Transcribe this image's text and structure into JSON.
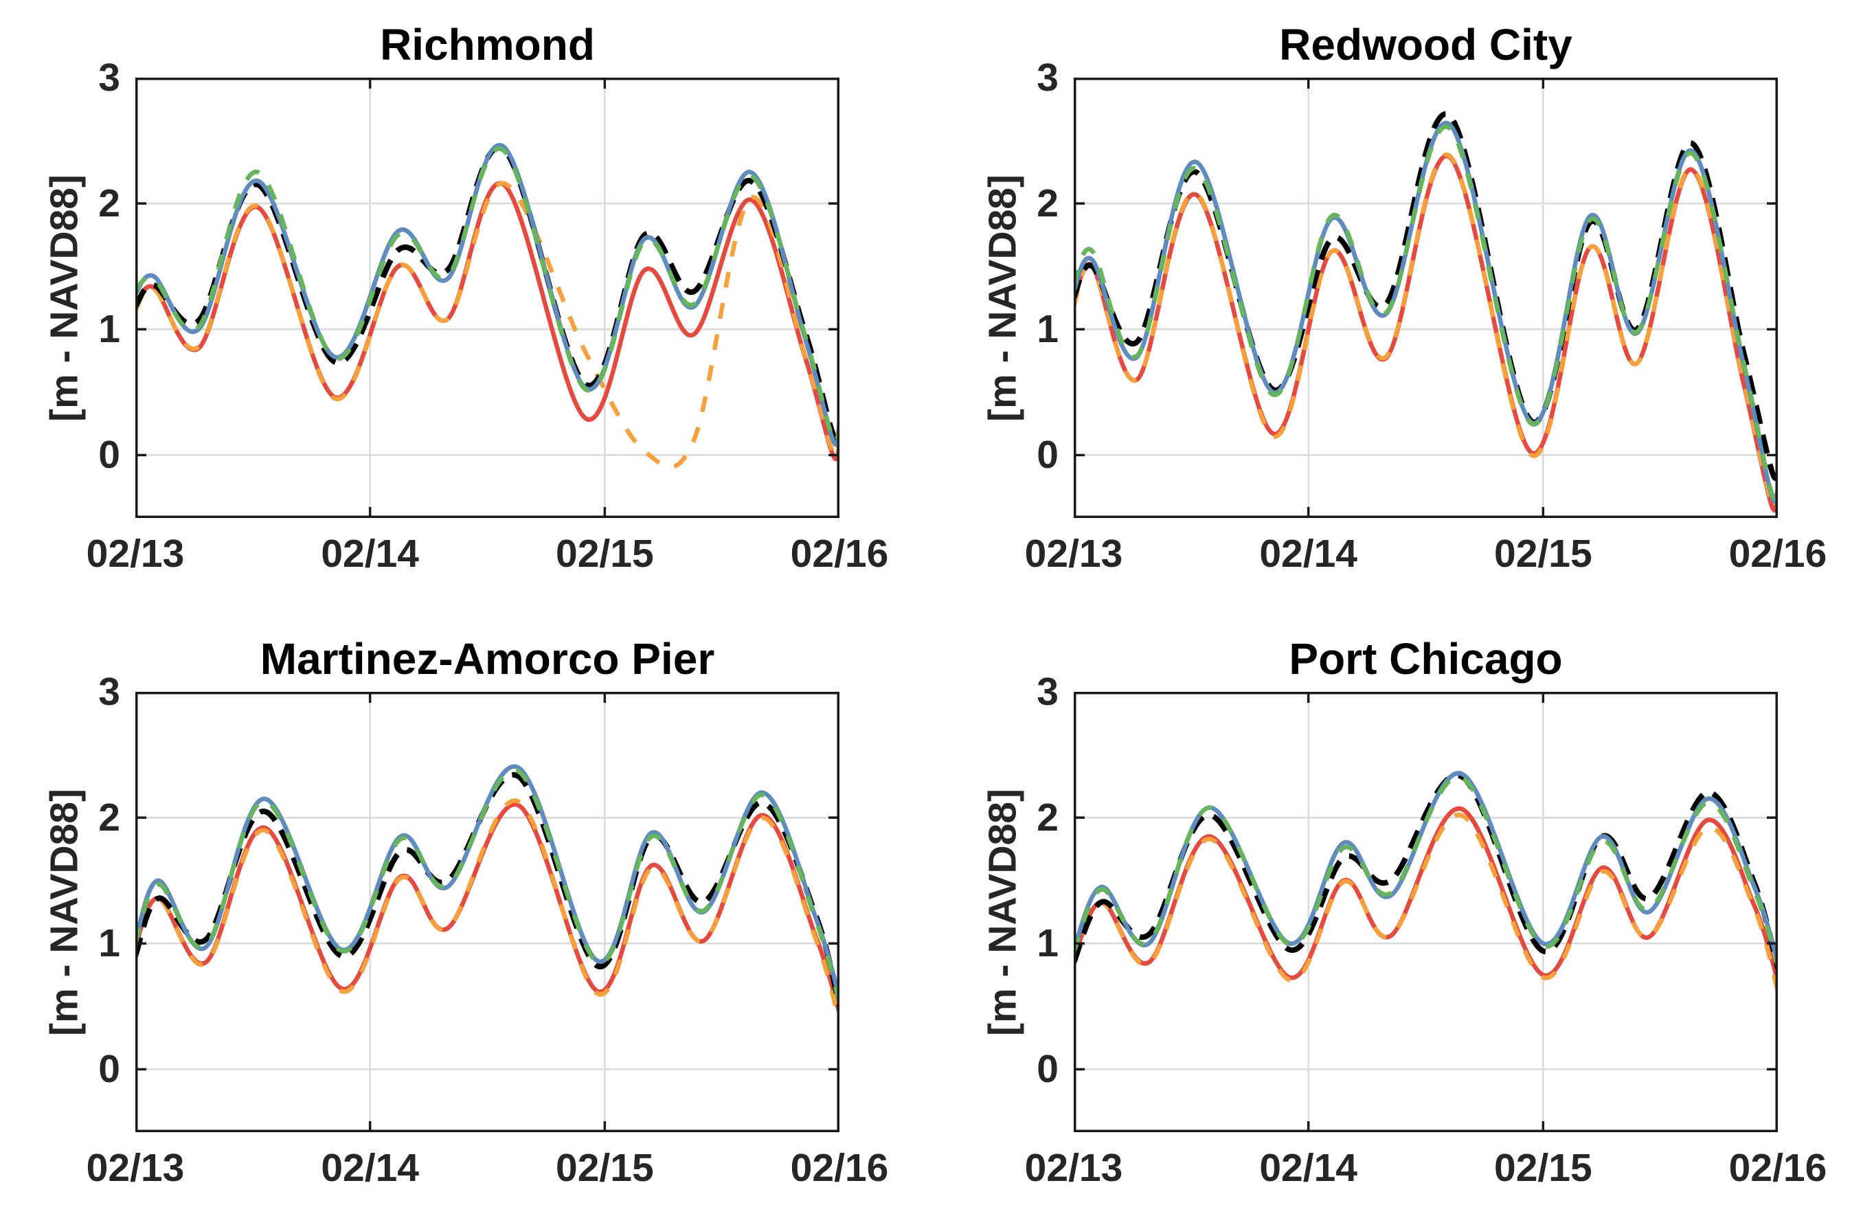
{
  "style": {
    "background": "#FFFFFF",
    "grid_color": "#D9D9D9",
    "axis_color": "#1A1A1A",
    "tick_label_color": "#262626",
    "title_color": "#000000"
  },
  "chart_data": [
    {
      "type": "line",
      "title": "Richmond",
      "ylabel": "[m - NAVD88]",
      "xlabel": "",
      "grid": true,
      "xlim": [
        0,
        3
      ],
      "ylim": [
        -0.5,
        3
      ],
      "x_ticks": {
        "labels": [
          "02/13",
          "02/14",
          "02/15",
          "02/16"
        ],
        "values": [
          0,
          1,
          2,
          3
        ]
      },
      "y_ticks": {
        "labels": [
          "3",
          "2",
          "1",
          "0"
        ],
        "values": [
          3,
          2,
          1,
          0
        ]
      },
      "x_unit": "days since 02/13 00:00",
      "x": [
        0,
        0.08,
        0.27,
        0.52,
        0.85,
        1.12,
        1.33,
        1.57,
        1.92,
        2.17,
        2.38,
        2.62,
        2.85,
        2.97,
        3.0
      ],
      "series": [
        {
          "name": "red-solid",
          "color": "#E6493E",
          "style": "solid",
          "width": 6.5,
          "dasharray": "",
          "values": [
            1.18,
            1.33,
            0.85,
            1.97,
            0.46,
            1.5,
            1.08,
            2.15,
            0.29,
            1.47,
            0.96,
            2.03,
            0.8,
            0.01,
            0.08
          ]
        },
        {
          "name": "orange-dashed",
          "color": "#F8A03C",
          "style": "dashed",
          "width": 6.5,
          "dasharray": "23 23",
          "values": [
            1.15,
            1.32,
            0.86,
            1.98,
            0.45,
            1.5,
            1.08,
            2.16,
            0.81,
            0.03,
            0.12,
            2.04,
            0.81,
            0.03,
            0.12
          ]
        },
        {
          "name": "black-dashed-thick",
          "color": "#000000",
          "style": "dashed",
          "width": 8,
          "dasharray": "28 16",
          "values": [
            1.18,
            1.35,
            1.07,
            2.15,
            0.74,
            1.63,
            1.47,
            2.43,
            0.56,
            1.75,
            1.3,
            2.18,
            1.0,
            0.18,
            0.22
          ]
        },
        {
          "name": "blue-solid",
          "color": "#5F8CBE",
          "style": "solid",
          "width": 6.5,
          "dasharray": "",
          "values": [
            1.28,
            1.42,
            1.0,
            2.18,
            0.78,
            1.78,
            1.4,
            2.45,
            0.53,
            1.72,
            1.18,
            2.25,
            0.95,
            0.13,
            0.18
          ]
        },
        {
          "name": "green-dashed",
          "color": "#66B55C",
          "style": "dashed",
          "width": 6.5,
          "dasharray": "23 23",
          "values": [
            1.31,
            1.4,
            1.02,
            2.25,
            0.77,
            1.75,
            1.42,
            2.42,
            0.52,
            1.7,
            1.2,
            2.22,
            0.97,
            0.14,
            0.25
          ]
        }
      ]
    },
    {
      "type": "line",
      "title": "Redwood City",
      "ylabel": "[m - NAVD88]",
      "xlabel": "",
      "grid": true,
      "xlim": [
        0,
        3
      ],
      "ylim": [
        -0.5,
        3
      ],
      "x_ticks": {
        "labels": [
          "02/13",
          "02/14",
          "02/15",
          "02/16"
        ],
        "values": [
          0,
          1,
          2,
          3
        ]
      },
      "y_ticks": {
        "labels": [
          "3",
          "2",
          "1",
          "0"
        ],
        "values": [
          3,
          2,
          1,
          0
        ]
      },
      "x_unit": "days since 02/13 00:00",
      "x": [
        0,
        0.08,
        0.27,
        0.52,
        0.85,
        1.1,
        1.33,
        1.6,
        1.95,
        2.2,
        2.4,
        2.63,
        2.85,
        2.97,
        3.0
      ],
      "series": [
        {
          "name": "red-solid",
          "color": "#E6493E",
          "style": "solid",
          "width": 6.5,
          "dasharray": "",
          "values": [
            1.2,
            1.5,
            0.6,
            2.07,
            0.17,
            1.62,
            0.77,
            2.37,
            0.02,
            1.65,
            0.73,
            2.27,
            0.6,
            -0.38,
            -0.33
          ]
        },
        {
          "name": "orange-dashed",
          "color": "#F8A03C",
          "style": "dashed",
          "width": 6.5,
          "dasharray": "23 23",
          "values": [
            1.18,
            1.49,
            0.6,
            2.08,
            0.15,
            1.62,
            0.78,
            2.38,
            0.0,
            1.65,
            0.73,
            2.28,
            0.61,
            -0.36,
            -0.3
          ]
        },
        {
          "name": "black-dashed-thick",
          "color": "#000000",
          "style": "dashed",
          "width": 8,
          "dasharray": "28 16",
          "values": [
            1.25,
            1.5,
            0.9,
            2.25,
            0.52,
            1.72,
            1.2,
            2.7,
            0.27,
            1.85,
            1.0,
            2.48,
            0.85,
            -0.1,
            -0.14
          ]
        },
        {
          "name": "blue-solid",
          "color": "#5F8CBE",
          "style": "solid",
          "width": 6.5,
          "dasharray": "",
          "values": [
            1.3,
            1.55,
            0.78,
            2.33,
            0.5,
            1.88,
            1.12,
            2.63,
            0.26,
            1.9,
            0.97,
            2.42,
            0.75,
            -0.3,
            -0.27
          ]
        },
        {
          "name": "green-dashed",
          "color": "#66B55C",
          "style": "dashed",
          "width": 6.5,
          "dasharray": "23 23",
          "values": [
            1.35,
            1.62,
            0.79,
            2.28,
            0.48,
            1.9,
            1.13,
            2.6,
            0.25,
            1.87,
            0.98,
            2.4,
            0.77,
            -0.28,
            -0.22
          ]
        }
      ]
    },
    {
      "type": "line",
      "title": "Martinez-Amorco Pier",
      "ylabel": "[m - NAVD88]",
      "xlabel": "",
      "grid": true,
      "xlim": [
        0,
        3
      ],
      "ylim": [
        -0.5,
        3
      ],
      "x_ticks": {
        "labels": [
          "02/13",
          "02/14",
          "02/15",
          "02/16"
        ],
        "values": [
          0,
          1,
          2,
          3
        ]
      },
      "y_ticks": {
        "labels": [
          "3",
          "2",
          "1",
          "0"
        ],
        "values": [
          3,
          2,
          1,
          0
        ]
      },
      "x_unit": "days since 02/13 00:00",
      "x": [
        0,
        0.1,
        0.3,
        0.55,
        0.88,
        1.13,
        1.33,
        1.63,
        1.97,
        2.2,
        2.42,
        2.67,
        2.9,
        3.0
      ],
      "series": [
        {
          "name": "red-solid",
          "color": "#E6493E",
          "style": "solid",
          "width": 6.5,
          "dasharray": "",
          "values": [
            0.98,
            1.36,
            0.85,
            1.92,
            0.64,
            1.53,
            1.12,
            2.1,
            0.62,
            1.62,
            1.02,
            2.02,
            1.05,
            0.45
          ]
        },
        {
          "name": "orange-dashed",
          "color": "#F8A03C",
          "style": "dashed",
          "width": 6.5,
          "dasharray": "23 23",
          "values": [
            0.92,
            1.35,
            0.84,
            1.9,
            0.62,
            1.52,
            1.12,
            2.13,
            0.6,
            1.6,
            1.02,
            2.0,
            1.03,
            0.38
          ]
        },
        {
          "name": "black-dashed-thick",
          "color": "#000000",
          "style": "dashed",
          "width": 8,
          "dasharray": "28 16",
          "values": [
            0.9,
            1.36,
            1.03,
            2.05,
            0.9,
            1.73,
            1.5,
            2.33,
            0.82,
            1.85,
            1.33,
            2.12,
            1.22,
            0.5
          ]
        },
        {
          "name": "blue-solid",
          "color": "#5F8CBE",
          "style": "solid",
          "width": 6.5,
          "dasharray": "",
          "values": [
            1.02,
            1.5,
            0.97,
            2.15,
            0.95,
            1.85,
            1.45,
            2.4,
            0.86,
            1.88,
            1.25,
            2.2,
            1.2,
            0.57
          ]
        },
        {
          "name": "green-dashed",
          "color": "#66B55C",
          "style": "dashed",
          "width": 6.5,
          "dasharray": "23 23",
          "values": [
            1.0,
            1.47,
            0.98,
            2.13,
            0.94,
            1.83,
            1.46,
            2.37,
            0.85,
            1.85,
            1.26,
            2.18,
            1.18,
            0.53
          ]
        }
      ]
    },
    {
      "type": "line",
      "title": "Port Chicago",
      "ylabel": "[m - NAVD88]",
      "xlabel": "",
      "grid": true,
      "xlim": [
        0,
        3
      ],
      "ylim": [
        -0.5,
        3
      ],
      "x_ticks": {
        "labels": [
          "02/13",
          "02/14",
          "02/15",
          "02/16"
        ],
        "values": [
          0,
          1,
          2,
          3
        ]
      },
      "y_ticks": {
        "labels": [
          "3",
          "2",
          "1",
          "0"
        ],
        "values": [
          3,
          2,
          1,
          0
        ]
      },
      "x_unit": "days since 02/13 00:00",
      "x": [
        0,
        0.12,
        0.32,
        0.58,
        0.92,
        1.15,
        1.35,
        1.65,
        2.0,
        2.25,
        2.45,
        2.7,
        2.9,
        3.0
      ],
      "series": [
        {
          "name": "red-solid",
          "color": "#E6493E",
          "style": "solid",
          "width": 6.5,
          "dasharray": "",
          "values": [
            0.88,
            1.33,
            0.85,
            1.85,
            0.73,
            1.5,
            1.06,
            2.07,
            0.75,
            1.6,
            1.05,
            1.98,
            1.3,
            0.7
          ]
        },
        {
          "name": "orange-dashed",
          "color": "#F8A03C",
          "style": "dashed",
          "width": 6.5,
          "dasharray": "23 23",
          "values": [
            0.83,
            1.32,
            0.84,
            1.83,
            0.71,
            1.49,
            1.06,
            2.02,
            0.73,
            1.57,
            1.05,
            1.92,
            1.28,
            0.62
          ]
        },
        {
          "name": "black-dashed-thick",
          "color": "#000000",
          "style": "dashed",
          "width": 8,
          "dasharray": "28 16",
          "values": [
            0.85,
            1.33,
            1.07,
            2.02,
            0.95,
            1.68,
            1.5,
            2.33,
            0.94,
            1.85,
            1.36,
            2.2,
            1.48,
            0.8
          ]
        },
        {
          "name": "blue-solid",
          "color": "#5F8CBE",
          "style": "solid",
          "width": 6.5,
          "dasharray": "",
          "values": [
            0.95,
            1.45,
            1.0,
            2.08,
            1.0,
            1.8,
            1.38,
            2.35,
            1.0,
            1.85,
            1.25,
            2.15,
            1.45,
            0.85
          ]
        },
        {
          "name": "green-dashed",
          "color": "#66B55C",
          "style": "dashed",
          "width": 6.5,
          "dasharray": "23 23",
          "values": [
            0.93,
            1.43,
            1.01,
            2.08,
            0.99,
            1.76,
            1.4,
            2.32,
            0.98,
            1.81,
            1.27,
            2.12,
            1.42,
            0.82
          ]
        }
      ]
    }
  ]
}
